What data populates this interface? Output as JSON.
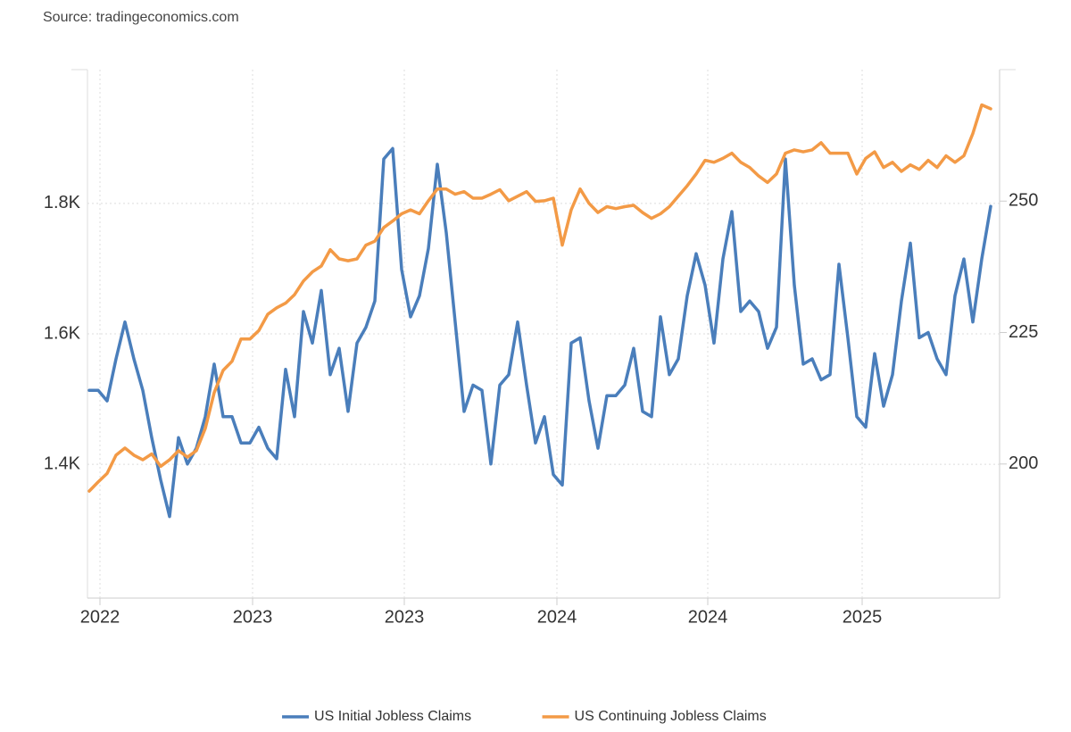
{
  "chart_data": {
    "type": "line",
    "source": "Source: tradingeconomics.com",
    "legend": "bottom",
    "grid": true,
    "xlim": [
      -0.2,
      102
    ],
    "xticks": [
      {
        "value": 1.2,
        "label": "2022"
      },
      {
        "value": 18.3,
        "label": "2023"
      },
      {
        "value": 35.3,
        "label": "2023"
      },
      {
        "value": 52.4,
        "label": "2024"
      },
      {
        "value": 69.3,
        "label": "2024"
      },
      {
        "value": 86.6,
        "label": "2025"
      }
    ],
    "ylim": [
      1195,
      2005
    ],
    "yticks": [
      {
        "value": 1400,
        "label": "1.4K"
      },
      {
        "value": 1600,
        "label": "1.6K"
      },
      {
        "value": 1800,
        "label": "1.8K"
      }
    ],
    "y2lim": [
      174.5,
      275
    ],
    "y2ticks": [
      200,
      225,
      250
    ],
    "series": [
      {
        "name": "US Initial Jobless Claims",
        "color": "#4a7ebb",
        "axis": "y2",
        "values": [
          214,
          214,
          212,
          220,
          227,
          220,
          214,
          205,
          197,
          190,
          205,
          200,
          203,
          209,
          219,
          209,
          209,
          204,
          204,
          207,
          203,
          201,
          218,
          209,
          229,
          223,
          233,
          217,
          222,
          210,
          223,
          226,
          231,
          258,
          260,
          237,
          228,
          232,
          241,
          257,
          244,
          227,
          210,
          215,
          214,
          200,
          215,
          217,
          227,
          215,
          204,
          209,
          198,
          196,
          223,
          224,
          212,
          203,
          213,
          213,
          215,
          222,
          210,
          209,
          228,
          217,
          220,
          232,
          240,
          234,
          223,
          239,
          248,
          229,
          231,
          229,
          222,
          226,
          258,
          234,
          219,
          220,
          216,
          217,
          238,
          224,
          209,
          207,
          221,
          211,
          217,
          231,
          242,
          224,
          225,
          220,
          217,
          232,
          239,
          227,
          239,
          249
        ]
      },
      {
        "name": "US Continuing Jobless Claims",
        "color": "#f39a46",
        "values": [
          1359,
          1373,
          1386,
          1414,
          1425,
          1414,
          1407,
          1416,
          1397,
          1407,
          1421,
          1411,
          1421,
          1455,
          1510,
          1544,
          1558,
          1592,
          1592,
          1605,
          1630,
          1640,
          1647,
          1660,
          1681,
          1695,
          1704,
          1729,
          1715,
          1712,
          1715,
          1736,
          1742,
          1763,
          1773,
          1784,
          1790,
          1784,
          1804,
          1822,
          1822,
          1814,
          1818,
          1808,
          1808,
          1814,
          1821,
          1804,
          1811,
          1818,
          1803,
          1804,
          1808,
          1736,
          1790,
          1822,
          1800,
          1786,
          1795,
          1792,
          1795,
          1797,
          1786,
          1777,
          1784,
          1795,
          1811,
          1827,
          1845,
          1866,
          1863,
          1869,
          1877,
          1863,
          1855,
          1842,
          1832,
          1845,
          1877,
          1882,
          1879,
          1882,
          1893,
          1877,
          1877,
          1877,
          1845,
          1869,
          1879,
          1855,
          1863,
          1849,
          1859,
          1852,
          1866,
          1855,
          1873,
          1863,
          1873,
          1907,
          1951,
          1945
        ]
      }
    ]
  }
}
